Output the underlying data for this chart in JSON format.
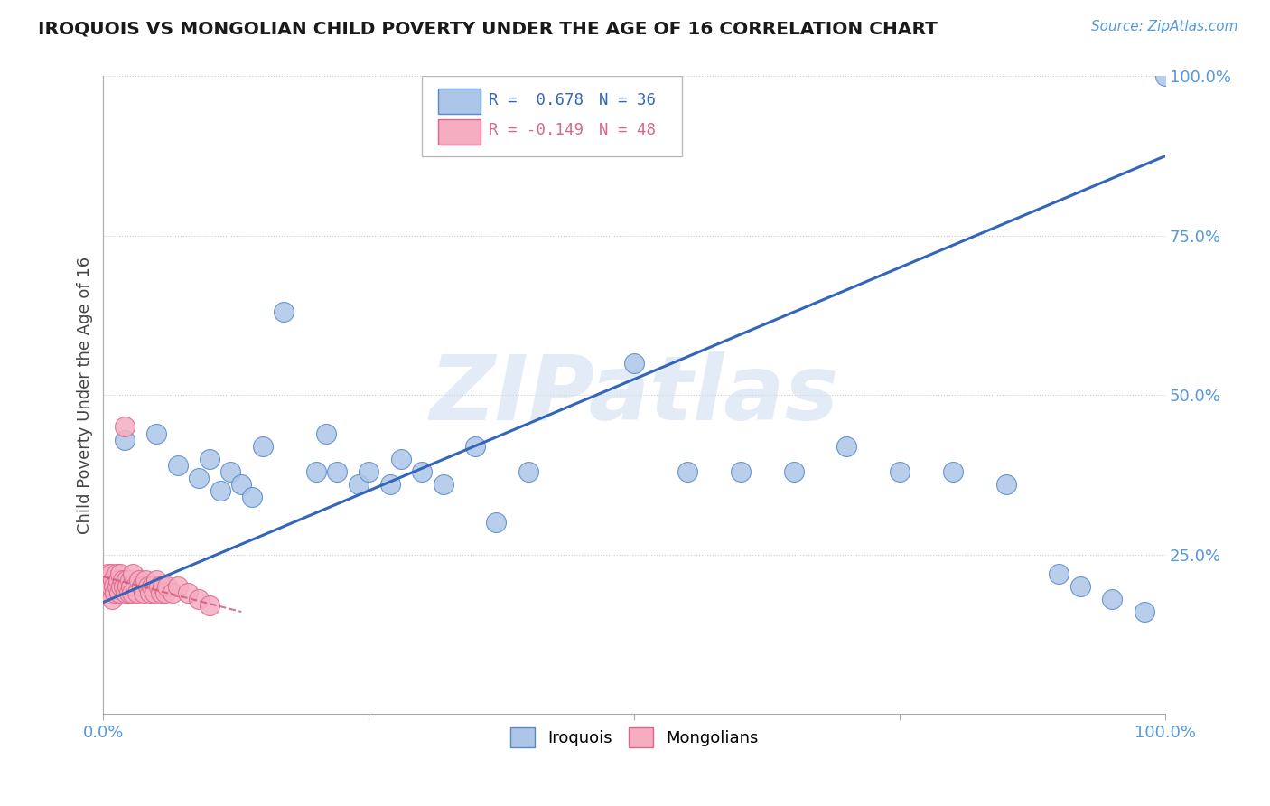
{
  "title": "IROQUOIS VS MONGOLIAN CHILD POVERTY UNDER THE AGE OF 16 CORRELATION CHART",
  "source": "Source: ZipAtlas.com",
  "ylabel": "Child Poverty Under the Age of 16",
  "xlim": [
    0.0,
    1.0
  ],
  "ylim": [
    0.0,
    1.0
  ],
  "ytick_positions": [
    0.25,
    0.5,
    0.75,
    1.0
  ],
  "ytick_labels": [
    "25.0%",
    "50.0%",
    "75.0%",
    "100.0%"
  ],
  "legend_r_iroquois": "R =  0.678",
  "legend_n_iroquois": "N = 36",
  "legend_r_mongolian": "R = -0.149",
  "legend_n_mongolian": "N = 48",
  "iroquois_color": "#adc6e8",
  "mongolian_color": "#f5adc2",
  "iroquois_edge_color": "#5588cc",
  "mongolian_edge_color": "#dd6688",
  "iroquois_line_color": "#3366bb",
  "mongolian_line_color": "#cc5577",
  "watermark_text": "ZIPatlas",
  "background_color": "#ffffff",
  "iroquois_x": [
    0.02,
    0.05,
    0.07,
    0.09,
    0.1,
    0.11,
    0.12,
    0.13,
    0.14,
    0.15,
    0.17,
    0.2,
    0.21,
    0.22,
    0.24,
    0.25,
    0.27,
    0.28,
    0.3,
    0.32,
    0.35,
    0.37,
    0.4,
    0.5,
    0.55,
    0.6,
    0.65,
    0.7,
    0.75,
    0.8,
    0.85,
    0.9,
    0.92,
    0.95,
    0.98,
    1.0
  ],
  "iroquois_y": [
    0.43,
    0.44,
    0.39,
    0.37,
    0.4,
    0.35,
    0.38,
    0.36,
    0.34,
    0.42,
    0.63,
    0.38,
    0.44,
    0.38,
    0.36,
    0.38,
    0.36,
    0.4,
    0.38,
    0.36,
    0.42,
    0.3,
    0.38,
    0.55,
    0.38,
    0.38,
    0.38,
    0.42,
    0.38,
    0.38,
    0.36,
    0.22,
    0.2,
    0.18,
    0.16,
    1.0
  ],
  "mongolian_x": [
    0.003,
    0.004,
    0.005,
    0.006,
    0.007,
    0.007,
    0.008,
    0.009,
    0.01,
    0.011,
    0.012,
    0.013,
    0.014,
    0.015,
    0.016,
    0.017,
    0.018,
    0.019,
    0.02,
    0.021,
    0.022,
    0.023,
    0.024,
    0.025,
    0.026,
    0.027,
    0.028,
    0.03,
    0.032,
    0.034,
    0.036,
    0.038,
    0.04,
    0.042,
    0.044,
    0.046,
    0.048,
    0.05,
    0.052,
    0.054,
    0.056,
    0.058,
    0.06,
    0.065,
    0.07,
    0.08,
    0.09,
    0.1
  ],
  "mongolian_y": [
    0.2,
    0.22,
    0.19,
    0.21,
    0.2,
    0.22,
    0.18,
    0.21,
    0.2,
    0.19,
    0.22,
    0.2,
    0.21,
    0.19,
    0.22,
    0.2,
    0.21,
    0.2,
    0.45,
    0.19,
    0.21,
    0.2,
    0.19,
    0.21,
    0.2,
    0.19,
    0.22,
    0.2,
    0.19,
    0.21,
    0.2,
    0.19,
    0.21,
    0.2,
    0.19,
    0.2,
    0.19,
    0.21,
    0.2,
    0.19,
    0.2,
    0.19,
    0.2,
    0.19,
    0.2,
    0.19,
    0.18,
    0.17
  ],
  "iq_line_x0": 0.0,
  "iq_line_y0": 0.175,
  "iq_line_x1": 1.0,
  "iq_line_y1": 0.875,
  "mn_line_x0": 0.0,
  "mn_line_y0": 0.215,
  "mn_line_x1": 0.13,
  "mn_line_y1": 0.16
}
